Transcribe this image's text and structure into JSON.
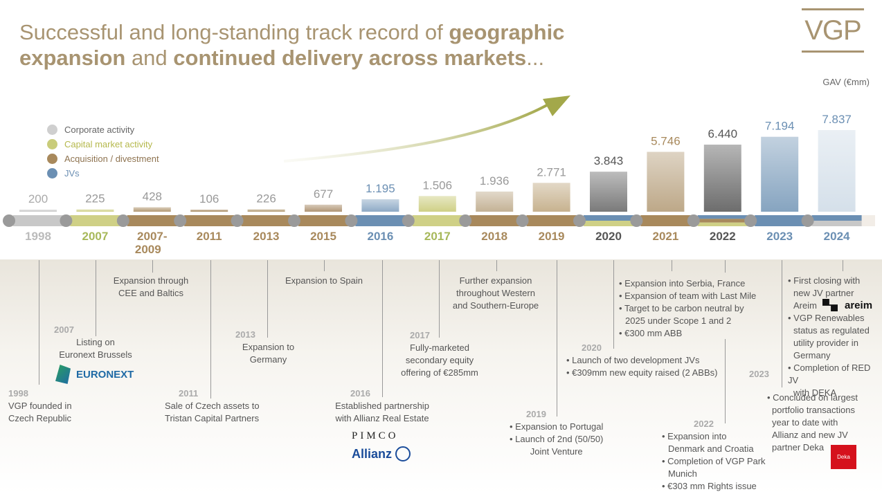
{
  "title": {
    "part1": "Successful and long-standing track record of ",
    "part2": "geographic",
    "part3": "expansion",
    "part4": " and ",
    "part5": "continued delivery across markets",
    "part6": "..."
  },
  "logo": "VGP",
  "unit_label": "GAV (€mm)",
  "legend": [
    {
      "label": "Corporate activity",
      "color": "#cfcfcf"
    },
    {
      "label": "Capital market activity",
      "color": "#c9cc7a"
    },
    {
      "label": "Acquisition / divestment",
      "color": "#a8895c"
    },
    {
      "label": "JVs",
      "color": "#6b8fb3"
    }
  ],
  "chart_data": {
    "type": "bar",
    "categories": [
      "1998",
      "2007",
      "2007-2009",
      "2011",
      "2013",
      "2015",
      "2016",
      "2017",
      "2018",
      "2019",
      "2020",
      "2021",
      "2022",
      "2023",
      "2024"
    ],
    "value_labels": [
      "200",
      "225",
      "428",
      "106",
      "226",
      "677",
      "1.195",
      "1.506",
      "1.936",
      "2.771",
      "3.843",
      "5.746",
      "6.440",
      "7.194",
      "7.837"
    ],
    "values": [
      200,
      225,
      428,
      106,
      226,
      677,
      1195,
      1506,
      1936,
      2771,
      3843,
      5746,
      6440,
      7194,
      7837
    ],
    "bar_colors": [
      "#c8c8c8",
      "#cfd086",
      "#b39a74",
      "#a98c62",
      "#b29a72",
      "#b09675",
      "#8eaac6",
      "#cfd086",
      "#c4b295",
      "#c7b28f",
      "#7a7a7a",
      "#bda888",
      "#6d6d6d",
      "#86a4c0",
      "#d5e0ea"
    ],
    "label_colors": [
      "#aaaaaa",
      "#999999",
      "#999999",
      "#999999",
      "#999999",
      "#999999",
      "#6b8fb3",
      "#999999",
      "#999999",
      "#999999",
      "#555555",
      "#a8895c",
      "#555555",
      "#6b8fb3",
      "#6b8fb3"
    ],
    "year_colors": [
      "#bbbbbb",
      "#a7b85a",
      "#a8895c",
      "#a8895c",
      "#a8895c",
      "#a8895c",
      "#6b8fb3",
      "#a7b85a",
      "#a8895c",
      "#a8895c",
      "#555555",
      "#a8895c",
      "#555555",
      "#6b8fb3",
      "#6b8fb3"
    ],
    "timeline_colors": [
      [
        "#c8c8c8"
      ],
      [
        "#cfd086"
      ],
      [
        "#a8895c"
      ],
      [
        "#a8895c"
      ],
      [
        "#a8895c"
      ],
      [
        "#a8895c"
      ],
      [
        "#6b8fb3"
      ],
      [
        "#cfd086"
      ],
      [
        "#a8895c"
      ],
      [
        "#a8895c"
      ],
      [
        "#6b8fb3",
        "#cfd086"
      ],
      [
        "#a8895c"
      ],
      [
        "#6b8fb3",
        "#a8895c",
        "#cfd086"
      ],
      [
        "#6b8fb3"
      ],
      [
        "#6b8fb3",
        "#c8c8c8"
      ]
    ],
    "ylim": [
      0,
      8000
    ]
  },
  "events": {
    "e1998": {
      "year": "1998",
      "text": [
        "VGP founded in",
        "Czech Republic"
      ]
    },
    "e2007": {
      "year": "2007",
      "text": [
        "Listing on",
        "Euronext Brussels"
      ]
    },
    "e2007_2009": {
      "text": [
        "Expansion through",
        "CEE and Baltics"
      ]
    },
    "e2011": {
      "year": "2011",
      "text": [
        "Sale of Czech assets to",
        "Tristan Capital Partners"
      ]
    },
    "e2013": {
      "year": "2013",
      "text": [
        "Expansion to",
        "Germany"
      ]
    },
    "e2015": {
      "text": [
        "Expansion to Spain"
      ]
    },
    "e2016": {
      "year": "2016",
      "text": [
        "Established partnership",
        "with Allianz Real Estate"
      ]
    },
    "e2017": {
      "year": "2017",
      "text": [
        "Fully-marketed",
        "secondary equity",
        "offering of €285mm"
      ]
    },
    "e2018": {
      "text": [
        "Further expansion",
        "throughout Western",
        "and Southern-Europe"
      ]
    },
    "e2019": {
      "year": "2019",
      "items": [
        "Expansion to Portugal",
        "Launch of 2nd (50/50)",
        "Joint Venture"
      ]
    },
    "e2020": {
      "year": "2020",
      "items": [
        "Launch of two development JVs",
        "€309mm new equity raised (2 ABBs)"
      ]
    },
    "e2021": {
      "items": [
        "Expansion into Serbia, France",
        "Expansion of team with Last Mile",
        "Target to be carbon neutral by",
        "2025 under Scope 1 and 2",
        "€300 mm ABB"
      ]
    },
    "e2022": {
      "year": "2022",
      "items": [
        "Expansion into",
        "Denmark and Croatia",
        "Completion of VGP Park",
        "Munich",
        "€303 mm Rights issue"
      ]
    },
    "e2023": {
      "year": "2023",
      "items": [
        "Concluded on largest",
        "portfolio transactions",
        "year to date with",
        "Allianz and new JV",
        "partner Deka"
      ]
    },
    "e2024": {
      "items": [
        "First closing with",
        "new JV partner",
        "Areim",
        "VGP Renewables",
        "status as regulated",
        "utility provider in",
        "Germany",
        "Completion of RED JV",
        "with DEKA"
      ]
    }
  },
  "logos": {
    "euronext": "EURONEXT",
    "pimco": "PIMCO",
    "allianz": "Allianz",
    "areim": "areim",
    "deka": "Deka"
  }
}
